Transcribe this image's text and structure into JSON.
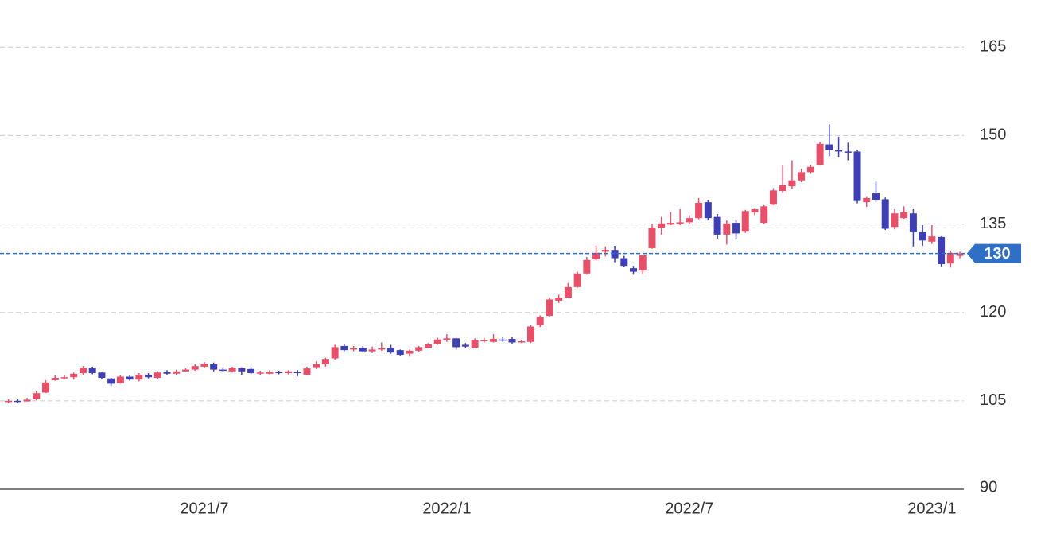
{
  "chart_data": {
    "type": "candlestick",
    "categories": [
      null,
      null,
      null,
      null,
      null,
      null,
      null,
      null,
      null,
      null,
      null,
      null,
      null,
      null,
      null,
      null,
      null,
      null,
      null,
      null,
      null,
      "2021/7",
      null,
      null,
      null,
      null,
      null,
      null,
      null,
      null,
      null,
      null,
      null,
      null,
      null,
      null,
      null,
      null,
      null,
      null,
      null,
      null,
      null,
      null,
      null,
      null,
      null,
      "2022/1",
      null,
      null,
      null,
      null,
      null,
      null,
      null,
      null,
      null,
      null,
      null,
      null,
      null,
      null,
      null,
      null,
      null,
      null,
      null,
      null,
      null,
      null,
      null,
      null,
      null,
      "2022/7",
      null,
      null,
      null,
      null,
      null,
      null,
      null,
      null,
      null,
      null,
      null,
      null,
      null,
      null,
      null,
      null,
      null,
      null,
      null,
      null,
      null,
      null,
      null,
      null,
      null,
      "2023/1",
      null,
      null,
      null
    ],
    "open": [
      104.8,
      105.0,
      104.9,
      105.3,
      106.4,
      108.5,
      108.8,
      109.0,
      109.7,
      110.6,
      109.8,
      108.8,
      108.0,
      109.1,
      108.6,
      109.4,
      108.9,
      109.9,
      109.6,
      110.0,
      110.3,
      110.8,
      111.2,
      110.3,
      110.0,
      110.6,
      110.4,
      109.7,
      109.6,
      109.9,
      109.7,
      109.9,
      109.4,
      110.7,
      111.2,
      112.2,
      114.3,
      113.7,
      114.0,
      113.4,
      113.8,
      114.0,
      113.6,
      113.0,
      113.5,
      114.0,
      114.7,
      115.3,
      115.6,
      114.5,
      114.0,
      115.2,
      115.0,
      115.4,
      115.5,
      114.9,
      115.0,
      117.8,
      119.4,
      122.0,
      122.5,
      124.3,
      126.6,
      129.0,
      130.3,
      130.6,
      129.2,
      127.5,
      127.1,
      130.9,
      134.4,
      134.9,
      135.0,
      135.3,
      136.0,
      138.7,
      136.2,
      133.2,
      135.2,
      133.7,
      137.0,
      135.2,
      138.3,
      140.6,
      141.4,
      142.4,
      143.8,
      145.0,
      148.5,
      147.5,
      147.3,
      147.3,
      138.7,
      140.2,
      139.2,
      134.5,
      136.0,
      136.8,
      133.6,
      132.0,
      132.8,
      128.3,
      129.6
    ],
    "high": [
      105.3,
      105.3,
      105.5,
      106.7,
      108.5,
      109.3,
      109.3,
      109.8,
      110.9,
      110.8,
      109.9,
      108.9,
      109.3,
      109.3,
      109.7,
      109.7,
      110.0,
      110.2,
      110.3,
      110.5,
      111.2,
      111.6,
      111.5,
      110.7,
      110.8,
      110.7,
      110.7,
      110.1,
      110.2,
      110.1,
      110.2,
      110.2,
      110.8,
      111.7,
      112.3,
      114.5,
      114.7,
      114.3,
      114.3,
      114.2,
      114.9,
      114.5,
      113.7,
      113.7,
      114.3,
      114.8,
      115.7,
      116.3,
      115.7,
      114.8,
      115.6,
      115.7,
      116.3,
      115.8,
      115.8,
      115.3,
      117.8,
      119.5,
      122.5,
      123.0,
      125.0,
      126.9,
      129.4,
      131.3,
      131.2,
      131.3,
      129.6,
      127.9,
      129.8,
      135.0,
      136.2,
      137.0,
      137.5,
      136.5,
      139.4,
      139.1,
      136.7,
      135.6,
      135.6,
      137.4,
      137.6,
      138.2,
      141.1,
      144.9,
      145.8,
      144.4,
      145.0,
      148.9,
      151.9,
      149.8,
      148.8,
      147.5,
      139.6,
      142.2,
      139.5,
      137.5,
      138.0,
      137.5,
      134.8,
      134.8,
      132.9,
      130.5,
      130.3
    ],
    "low": [
      104.6,
      104.6,
      104.9,
      105.1,
      106.3,
      108.4,
      108.6,
      108.6,
      109.4,
      109.5,
      108.6,
      107.5,
      107.9,
      108.4,
      108.3,
      108.8,
      108.7,
      109.3,
      109.4,
      109.9,
      110.1,
      110.6,
      110.0,
      109.9,
      109.8,
      109.4,
      109.5,
      109.4,
      109.5,
      109.5,
      109.5,
      109.2,
      109.3,
      110.4,
      110.8,
      112.0,
      113.4,
      113.4,
      113.2,
      113.1,
      113.5,
      113.0,
      112.7,
      112.5,
      113.3,
      113.9,
      114.5,
      115.0,
      113.7,
      113.9,
      113.9,
      114.9,
      114.9,
      115.0,
      114.7,
      114.8,
      114.8,
      117.5,
      119.3,
      121.6,
      122.4,
      124.2,
      126.4,
      128.8,
      129.5,
      128.5,
      127.7,
      126.4,
      126.5,
      130.8,
      133.2,
      134.8,
      134.8,
      135.0,
      135.8,
      135.6,
      132.5,
      131.5,
      132.5,
      133.5,
      136.5,
      135.0,
      138.2,
      140.3,
      141.0,
      142.1,
      143.5,
      144.9,
      146.5,
      146.4,
      145.8,
      138.5,
      137.9,
      138.8,
      134.0,
      134.1,
      135.9,
      131.2,
      131.3,
      131.6,
      127.8,
      127.6,
      129.2
    ],
    "close": [
      105.0,
      104.8,
      105.2,
      106.3,
      108.1,
      108.9,
      109.0,
      109.6,
      110.6,
      109.7,
      108.9,
      107.9,
      109.1,
      108.6,
      109.4,
      109.0,
      109.8,
      109.6,
      110.0,
      110.3,
      110.9,
      111.3,
      110.3,
      110.2,
      110.6,
      110.0,
      109.7,
      109.8,
      109.9,
      109.8,
      110.0,
      109.7,
      110.5,
      111.2,
      112.1,
      114.1,
      113.6,
      113.9,
      113.4,
      113.7,
      113.9,
      113.2,
      112.8,
      113.5,
      114.1,
      114.6,
      115.4,
      115.6,
      114.1,
      114.2,
      115.3,
      115.3,
      115.5,
      115.2,
      114.9,
      115.1,
      117.6,
      119.2,
      122.2,
      122.5,
      124.3,
      126.6,
      128.9,
      130.1,
      130.6,
      129.2,
      127.9,
      126.9,
      129.7,
      134.4,
      135.1,
      135.2,
      135.3,
      136.0,
      138.6,
      136.0,
      133.2,
      135.1,
      133.4,
      137.2,
      137.5,
      138.0,
      140.7,
      141.6,
      142.4,
      143.8,
      144.7,
      148.6,
      147.6,
      147.4,
      147.2,
      138.9,
      139.4,
      139.1,
      134.2,
      136.8,
      137.0,
      133.6,
      132.2,
      132.9,
      128.2,
      130.1,
      130.0
    ],
    "up_color": "#e8506a",
    "down_color": "#3e3fb5",
    "current_price": 130,
    "current_color": "#2f6fc6",
    "ylim": [
      90,
      173
    ],
    "yticks": [
      90,
      105,
      120,
      135,
      150,
      165
    ],
    "grid": true
  }
}
